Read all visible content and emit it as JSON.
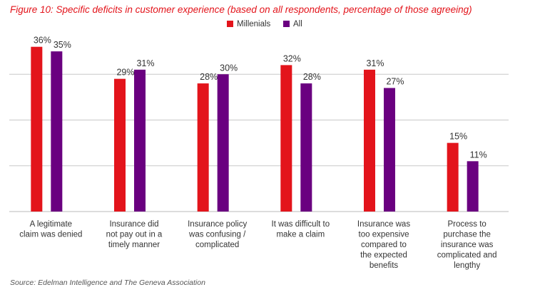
{
  "title": "Figure 10: Specific deficits in customer experience (based on all respondents, percentage of those agreeing)",
  "source": "Source: Edelman Intelligence and The Geneva Association",
  "colors": {
    "title": "#e3141b",
    "millenials": "#e3141b",
    "all": "#6a0080",
    "grid": "#c8c8c8",
    "text": "#333333"
  },
  "chart_data": {
    "type": "bar",
    "categories": [
      [
        "A legitimate",
        "claim was denied"
      ],
      [
        "Insurance did",
        "not pay out in a",
        "timely manner"
      ],
      [
        "Insurance policy",
        "was confusing /",
        "complicated"
      ],
      [
        "It was difficult to",
        "make a claim"
      ],
      [
        "Insurance was",
        "too expensive",
        "compared to",
        "the expected",
        "benefits"
      ],
      [
        "Process to",
        "purchase the",
        "insurance was",
        "complicated and",
        "lengthy"
      ]
    ],
    "series": [
      {
        "name": "Millenials",
        "values": [
          36,
          29,
          28,
          32,
          31,
          15
        ],
        "labels": [
          "36%",
          "29%",
          "28%",
          "32%",
          "31%",
          "15%"
        ]
      },
      {
        "name": "All",
        "values": [
          35,
          31,
          30,
          28,
          27,
          11
        ],
        "labels": [
          "35%",
          "31%",
          "30%",
          "28%",
          "27%",
          "11%"
        ]
      }
    ],
    "ylim": [
      0,
      40
    ],
    "gridlines": [
      0,
      10,
      20,
      30
    ],
    "legend_position": "top-center",
    "xlabel": "",
    "ylabel": ""
  }
}
